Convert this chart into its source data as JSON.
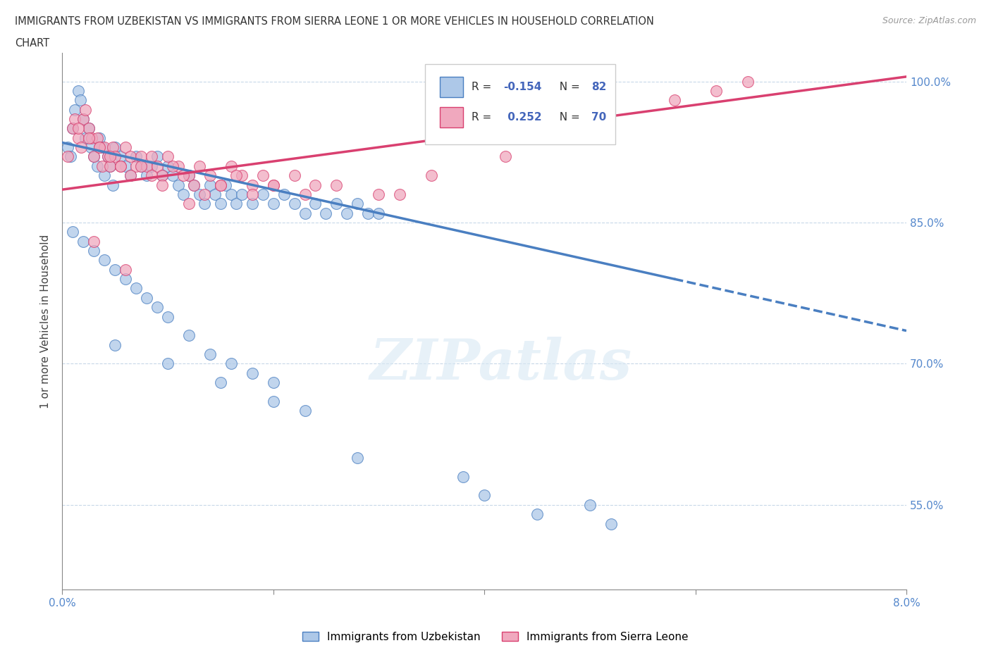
{
  "title_line1": "IMMIGRANTS FROM UZBEKISTAN VS IMMIGRANTS FROM SIERRA LEONE 1 OR MORE VEHICLES IN HOUSEHOLD CORRELATION",
  "title_line2": "CHART",
  "source": "Source: ZipAtlas.com",
  "ylabel": "1 or more Vehicles in Household",
  "xmin": 0.0,
  "xmax": 8.0,
  "ymin": 46.0,
  "ymax": 103.0,
  "yticks": [
    55.0,
    70.0,
    85.0,
    100.0
  ],
  "xticks": [
    0.0,
    2.0,
    4.0,
    6.0,
    8.0
  ],
  "xtick_labels": [
    "0.0%",
    "",
    "",
    "",
    "8.0%"
  ],
  "color_uzbekistan": "#adc8e8",
  "color_sierra_leone": "#f0a8be",
  "color_line_uzbekistan": "#4a7fc1",
  "color_line_sierra_leone": "#d94070",
  "R_uzbekistan": -0.154,
  "N_uzbekistan": 82,
  "R_sierra_leone": 0.252,
  "N_sierra_leone": 70,
  "watermark": "ZIPatlas",
  "uzb_line_x0": 0.0,
  "uzb_line_y0": 93.5,
  "uzb_line_x1": 8.0,
  "uzb_line_y1": 73.5,
  "sl_line_x0": 0.0,
  "sl_line_y0": 88.5,
  "sl_line_x1": 8.0,
  "sl_line_y1": 100.5,
  "uzb_solid_end": 5.8,
  "uzbekistan_x": [
    0.05,
    0.08,
    0.1,
    0.12,
    0.15,
    0.17,
    0.2,
    0.22,
    0.25,
    0.27,
    0.3,
    0.33,
    0.35,
    0.38,
    0.4,
    0.43,
    0.45,
    0.48,
    0.5,
    0.55,
    0.6,
    0.65,
    0.7,
    0.75,
    0.8,
    0.85,
    0.9,
    0.95,
    1.0,
    1.05,
    1.1,
    1.15,
    1.2,
    1.25,
    1.3,
    1.35,
    1.4,
    1.45,
    1.5,
    1.55,
    1.6,
    1.65,
    1.7,
    1.8,
    1.9,
    2.0,
    2.1,
    2.2,
    2.3,
    2.4,
    2.5,
    2.6,
    2.7,
    2.8,
    2.9,
    3.0,
    0.1,
    0.2,
    0.3,
    0.4,
    0.5,
    0.6,
    0.7,
    0.8,
    0.9,
    1.0,
    1.2,
    1.4,
    1.6,
    1.8,
    2.0,
    2.3,
    0.5,
    1.0,
    1.5,
    2.0,
    2.8,
    3.8,
    4.0,
    4.5,
    5.0,
    5.2
  ],
  "uzbekistan_y": [
    93,
    92,
    95,
    97,
    99,
    98,
    96,
    94,
    95,
    93,
    92,
    91,
    94,
    93,
    90,
    92,
    91,
    89,
    93,
    92,
    91,
    90,
    92,
    91,
    90,
    91,
    92,
    90,
    91,
    90,
    89,
    88,
    90,
    89,
    88,
    87,
    89,
    88,
    87,
    89,
    88,
    87,
    88,
    87,
    88,
    87,
    88,
    87,
    86,
    87,
    86,
    87,
    86,
    87,
    86,
    86,
    84,
    83,
    82,
    81,
    80,
    79,
    78,
    77,
    76,
    75,
    73,
    71,
    70,
    69,
    68,
    65,
    72,
    70,
    68,
    66,
    60,
    58,
    56,
    54,
    55,
    53
  ],
  "sierra_leone_x": [
    0.05,
    0.1,
    0.12,
    0.15,
    0.18,
    0.2,
    0.22,
    0.25,
    0.28,
    0.3,
    0.33,
    0.35,
    0.38,
    0.4,
    0.43,
    0.45,
    0.48,
    0.5,
    0.55,
    0.6,
    0.65,
    0.7,
    0.75,
    0.8,
    0.85,
    0.9,
    0.95,
    1.0,
    1.1,
    1.2,
    1.3,
    1.4,
    1.5,
    1.6,
    1.7,
    1.8,
    1.9,
    2.0,
    2.2,
    2.4,
    0.15,
    0.25,
    0.35,
    0.45,
    0.55,
    0.65,
    0.75,
    0.85,
    0.95,
    1.05,
    1.15,
    1.25,
    1.35,
    1.5,
    1.65,
    1.8,
    2.0,
    2.3,
    2.6,
    3.0,
    0.3,
    0.6,
    1.2,
    3.2,
    5.0,
    5.8,
    6.2,
    6.5,
    3.5,
    4.2
  ],
  "sierra_leone_y": [
    92,
    95,
    96,
    94,
    93,
    96,
    97,
    95,
    94,
    92,
    94,
    93,
    91,
    93,
    92,
    91,
    93,
    92,
    91,
    93,
    92,
    91,
    92,
    91,
    92,
    91,
    90,
    92,
    91,
    90,
    91,
    90,
    89,
    91,
    90,
    89,
    90,
    89,
    90,
    89,
    95,
    94,
    93,
    92,
    91,
    90,
    91,
    90,
    89,
    91,
    90,
    89,
    88,
    89,
    90,
    88,
    89,
    88,
    89,
    88,
    83,
    80,
    87,
    88,
    96,
    98,
    99,
    100,
    90,
    92
  ]
}
